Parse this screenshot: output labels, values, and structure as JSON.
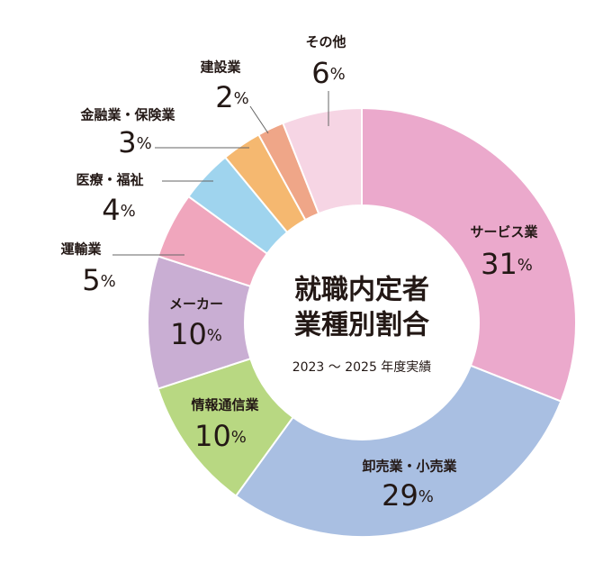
{
  "chart_data": {
    "type": "donut",
    "title": [
      "就職内定者",
      "業種別割合"
    ],
    "subtitle": "2023 ～ 2025 年度実績",
    "categories": [
      "サービス業",
      "卸売業・小売業",
      "情報通信業",
      "メーカー",
      "運輸業",
      "医療・福祉",
      "金融業・保険業",
      "建設業",
      "その他"
    ],
    "values": [
      31,
      29,
      10,
      10,
      5,
      4,
      3,
      2,
      6
    ],
    "value_labels": [
      "31%",
      "29%",
      "10%",
      "10%",
      "5%",
      "4%",
      "3%",
      "2%",
      "6%"
    ],
    "colors": [
      "#eba9cc",
      "#a9bfe2",
      "#b8d882",
      "#c9aed3",
      "#f0a6bd",
      "#9fd4ee",
      "#f5b870",
      "#efa688",
      "#f6d5e4"
    ]
  }
}
